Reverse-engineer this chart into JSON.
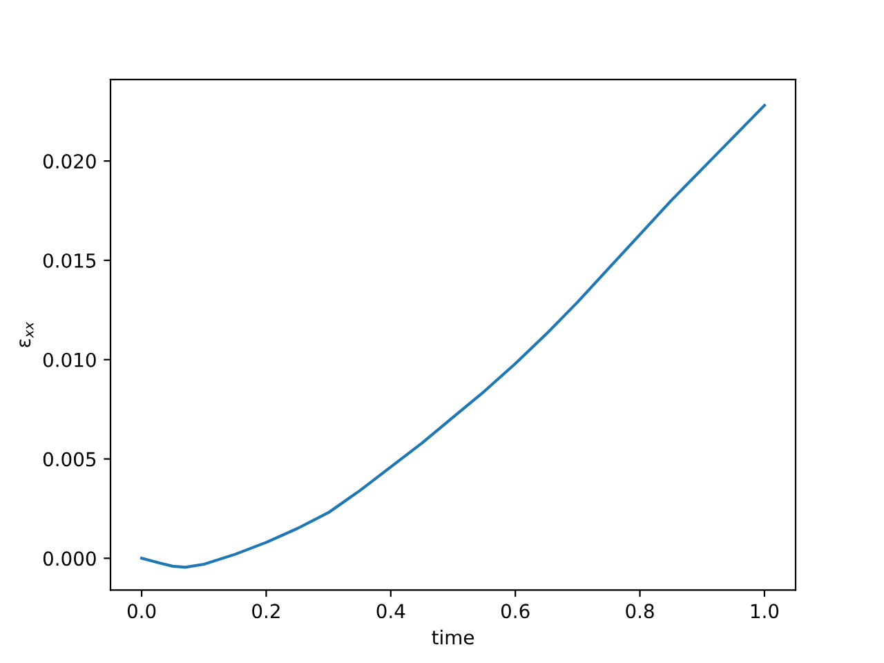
{
  "chart_data": {
    "type": "line",
    "xlabel": "time",
    "ylabel": "ε$_{xx}$",
    "x": [
      0,
      0.03,
      0.05,
      0.07,
      0.1,
      0.15,
      0.2,
      0.25,
      0.3,
      0.35,
      0.4,
      0.45,
      0.5,
      0.55,
      0.6,
      0.65,
      0.7,
      0.75,
      0.8,
      0.85,
      0.9,
      0.95,
      1.0
    ],
    "series": [
      {
        "color": "#1f77b4",
        "values": [
          0,
          -0.00025,
          -0.0004,
          -0.00045,
          -0.0003,
          0.0002,
          0.0008,
          0.0015,
          0.0023,
          0.0034,
          0.0046,
          0.0058,
          0.0071,
          0.0084,
          0.0098,
          0.0113,
          0.0129,
          0.0146,
          0.0163,
          0.018,
          0.0196,
          0.0212,
          0.0228
        ]
      }
    ],
    "xlim": [
      -0.05,
      1.05
    ],
    "ylim": [
      -0.0016,
      0.0241
    ],
    "xticks": [
      {
        "value": 0,
        "label": "0.0"
      },
      {
        "value": 0.2,
        "label": "0.2"
      },
      {
        "value": 0.4,
        "label": "0.4"
      },
      {
        "value": 0.6,
        "label": "0.6"
      },
      {
        "value": 0.8,
        "label": "0.8"
      },
      {
        "value": 1.0,
        "label": "1.0"
      }
    ],
    "yticks": [
      {
        "value": 0,
        "label": "0.000"
      },
      {
        "value": 0.005,
        "label": "0.005"
      },
      {
        "value": 0.01,
        "label": "0.010"
      },
      {
        "value": 0.015,
        "label": "0.015"
      },
      {
        "value": 0.02,
        "label": "0.020"
      }
    ],
    "grid": false
  }
}
